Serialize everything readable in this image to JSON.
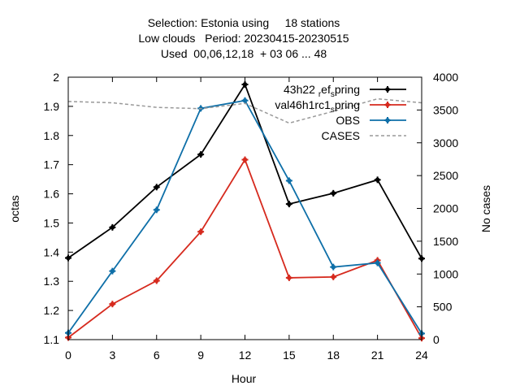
{
  "chart_data": {
    "type": "line",
    "title_lines": [
      "Selection: Estonia using     18 stations",
      "Low clouds   Period: 20230415-20230515",
      "Used  00,06,12,18  + 03 06 ... 48"
    ],
    "xlabel": "Hour",
    "ylabel": "octas",
    "y2label": "No cases",
    "x": [
      0,
      3,
      6,
      9,
      12,
      15,
      18,
      21,
      24
    ],
    "xlim": [
      0,
      24
    ],
    "ylim": [
      1.1,
      2.0
    ],
    "y2lim": [
      0,
      4000
    ],
    "xticks": [
      0,
      3,
      6,
      9,
      12,
      15,
      18,
      21,
      24
    ],
    "yticks": [
      1.1,
      1.2,
      1.3,
      1.4,
      1.5,
      1.6,
      1.7,
      1.8,
      1.9,
      2.0
    ],
    "y2ticks": [
      0,
      500,
      1000,
      1500,
      2000,
      2500,
      3000,
      3500,
      4000
    ],
    "legend_position": "top-right",
    "series": [
      {
        "name": "43h22 ref spring",
        "label_parts": [
          "43h22 ",
          "r",
          "ef",
          "s",
          "pring"
        ],
        "color": "#000000",
        "axis": "y",
        "values": [
          1.38,
          1.485,
          1.623,
          1.735,
          1.975,
          1.565,
          1.602,
          1.648,
          1.378
        ]
      },
      {
        "name": "val46h1rc1 spring",
        "label_parts": [
          "val46h1rc1",
          "",
          "",
          "s",
          "pring"
        ],
        "color": "#d62a1e",
        "axis": "y",
        "values": [
          1.107,
          1.222,
          1.302,
          1.47,
          1.717,
          1.312,
          1.315,
          1.372,
          1.105
        ]
      },
      {
        "name": "OBS",
        "label_parts": [
          "OBS",
          "",
          "",
          "",
          ""
        ],
        "color": "#0e6fa8",
        "axis": "y",
        "values": [
          1.123,
          1.335,
          1.545,
          1.893,
          1.92,
          1.645,
          1.349,
          1.363,
          1.121
        ]
      },
      {
        "name": "CASES",
        "label_parts": [
          "CASES",
          "",
          "",
          "",
          ""
        ],
        "color": "#999999",
        "axis": "y2",
        "dashed": true,
        "values": [
          3630,
          3610,
          3540,
          3520,
          3600,
          3300,
          3480,
          3670,
          3610
        ]
      }
    ]
  }
}
